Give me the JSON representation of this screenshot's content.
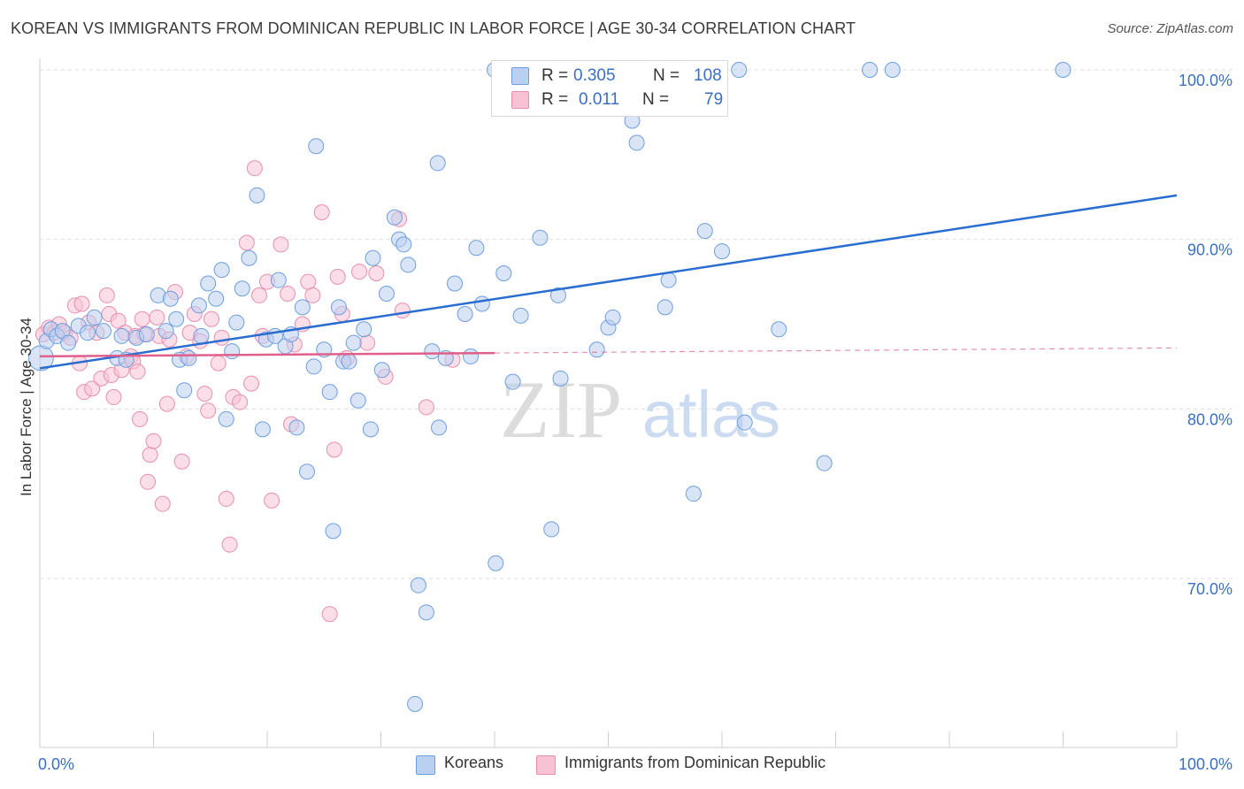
{
  "header": {
    "title": "KOREAN VS IMMIGRANTS FROM DOMINICAN REPUBLIC IN LABOR FORCE | AGE 30-34 CORRELATION CHART",
    "source": "Source: ZipAtlas.com"
  },
  "legend": {
    "r_label": "R =",
    "n_label": "N =",
    "series": [
      {
        "name": "Koreans",
        "r": "0.305",
        "n": "108"
      },
      {
        "name": "Immigrants from Dominican Republic",
        "r": "0.011",
        "n": "79"
      }
    ]
  },
  "watermark": {
    "zip": "ZIP",
    "atlas": "atlas"
  },
  "colors": {
    "koreans_fill": "#b9d0f1",
    "koreans_stroke": "#6d9ee0",
    "koreans_line": "#2a6dd0",
    "dominican_fill": "#f7c3d4",
    "dominican_stroke": "#e88fae",
    "dominican_line": "#e0608c",
    "axis_text": "#3a6fc6",
    "grid": "#dedede"
  },
  "chart_data": {
    "type": "scatter",
    "title": "KOREAN VS IMMIGRANTS FROM DOMINICAN REPUBLIC IN LABOR FORCE | AGE 30-34 CORRELATION CHART",
    "xlabel": "",
    "ylabel": "In Labor Force | Age 30-34",
    "xlim": [
      0,
      100
    ],
    "ylim": [
      60,
      102
    ],
    "x_tick_labels": [
      "0.0%",
      "100.0%"
    ],
    "y_ticks": [
      70,
      80,
      90,
      100
    ],
    "y_tick_labels": [
      "70.0%",
      "80.0%",
      "90.0%",
      "100.0%"
    ],
    "grid": true,
    "legend_position": "bottom",
    "series": [
      {
        "name": "Koreans",
        "r": 0.305,
        "n": 108,
        "trend": {
          "x": [
            0,
            100
          ],
          "y": [
            82.4,
            92.6
          ],
          "dashed_from": null
        },
        "points": [
          [
            0.1,
            83.0
          ],
          [
            0.6,
            84.0
          ],
          [
            1.0,
            84.7
          ],
          [
            1.5,
            84.3
          ],
          [
            2.0,
            84.6
          ],
          [
            2.5,
            83.9
          ],
          [
            3.4,
            84.9
          ],
          [
            4.2,
            84.5
          ],
          [
            4.8,
            85.4
          ],
          [
            5.6,
            84.6
          ],
          [
            6.8,
            83.0
          ],
          [
            7.2,
            84.3
          ],
          [
            7.6,
            82.9
          ],
          [
            8.5,
            84.2
          ],
          [
            9.4,
            84.4
          ],
          [
            10.4,
            86.7
          ],
          [
            11.1,
            84.6
          ],
          [
            11.5,
            86.5
          ],
          [
            12.0,
            85.3
          ],
          [
            12.3,
            82.9
          ],
          [
            12.7,
            81.1
          ],
          [
            13.1,
            83.0
          ],
          [
            14.0,
            86.1
          ],
          [
            14.2,
            84.3
          ],
          [
            14.8,
            87.4
          ],
          [
            15.5,
            86.5
          ],
          [
            16.0,
            88.2
          ],
          [
            16.4,
            79.4
          ],
          [
            16.9,
            83.4
          ],
          [
            17.3,
            85.1
          ],
          [
            17.8,
            87.1
          ],
          [
            18.4,
            88.9
          ],
          [
            19.1,
            92.6
          ],
          [
            19.6,
            78.8
          ],
          [
            19.9,
            84.1
          ],
          [
            20.7,
            84.3
          ],
          [
            21.0,
            87.6
          ],
          [
            21.6,
            83.7
          ],
          [
            22.1,
            84.4
          ],
          [
            22.6,
            78.9
          ],
          [
            23.1,
            86.0
          ],
          [
            23.5,
            76.3
          ],
          [
            24.1,
            82.5
          ],
          [
            24.3,
            95.5
          ],
          [
            25.0,
            83.5
          ],
          [
            25.5,
            81.0
          ],
          [
            25.8,
            72.8
          ],
          [
            26.3,
            86.0
          ],
          [
            26.7,
            82.8
          ],
          [
            27.2,
            82.8
          ],
          [
            27.6,
            83.9
          ],
          [
            28.0,
            80.5
          ],
          [
            28.5,
            84.7
          ],
          [
            29.1,
            78.8
          ],
          [
            29.3,
            88.9
          ],
          [
            30.1,
            82.3
          ],
          [
            30.5,
            86.8
          ],
          [
            31.2,
            91.3
          ],
          [
            31.6,
            90.0
          ],
          [
            32.0,
            89.7
          ],
          [
            32.4,
            88.5
          ],
          [
            33.0,
            62.6
          ],
          [
            33.3,
            69.6
          ],
          [
            34.0,
            68.0
          ],
          [
            34.5,
            83.4
          ],
          [
            35.0,
            94.5
          ],
          [
            35.1,
            78.9
          ],
          [
            35.7,
            83.0
          ],
          [
            36.5,
            87.4
          ],
          [
            37.4,
            85.6
          ],
          [
            37.9,
            83.1
          ],
          [
            38.4,
            89.5
          ],
          [
            38.9,
            86.2
          ],
          [
            40.1,
            70.9
          ],
          [
            40.8,
            88.0
          ],
          [
            41.6,
            81.6
          ],
          [
            42.3,
            85.5
          ],
          [
            44.0,
            90.1
          ],
          [
            45.0,
            72.9
          ],
          [
            45.6,
            86.7
          ],
          [
            45.8,
            81.8
          ],
          [
            49.0,
            83.5
          ],
          [
            50.0,
            84.8
          ],
          [
            50.4,
            85.4
          ],
          [
            51.0,
            98.1
          ],
          [
            52.1,
            97.0
          ],
          [
            52.5,
            95.7
          ],
          [
            53.5,
            100.0
          ],
          [
            55.0,
            86.0
          ],
          [
            55.3,
            87.6
          ],
          [
            57.5,
            75.0
          ],
          [
            58.5,
            90.5
          ],
          [
            60.0,
            89.3
          ],
          [
            61.5,
            100.0
          ],
          [
            62.0,
            79.2
          ],
          [
            65.0,
            84.7
          ],
          [
            69.0,
            76.8
          ],
          [
            73.0,
            100.0
          ],
          [
            75.0,
            100.0
          ],
          [
            90.0,
            100.0
          ],
          [
            40.0,
            100.0
          ]
        ]
      },
      {
        "name": "Immigrants from Dominican Republic",
        "r": 0.011,
        "n": 79,
        "trend": {
          "x": [
            0,
            100
          ],
          "y": [
            83.1,
            83.6
          ],
          "dashed_from": 40
        },
        "points": [
          [
            0.3,
            84.4
          ],
          [
            0.8,
            84.8
          ],
          [
            1.3,
            84.5
          ],
          [
            1.7,
            85.0
          ],
          [
            2.2,
            84.5
          ],
          [
            2.7,
            84.2
          ],
          [
            3.1,
            86.1
          ],
          [
            3.5,
            82.7
          ],
          [
            3.7,
            86.2
          ],
          [
            3.9,
            81.0
          ],
          [
            4.3,
            85.1
          ],
          [
            4.6,
            81.2
          ],
          [
            5.0,
            84.5
          ],
          [
            5.4,
            81.8
          ],
          [
            5.9,
            86.7
          ],
          [
            6.1,
            85.6
          ],
          [
            6.3,
            82.0
          ],
          [
            6.5,
            80.7
          ],
          [
            6.9,
            85.2
          ],
          [
            7.2,
            82.3
          ],
          [
            7.5,
            84.5
          ],
          [
            8.0,
            83.1
          ],
          [
            8.2,
            82.8
          ],
          [
            8.4,
            84.3
          ],
          [
            8.6,
            82.2
          ],
          [
            8.8,
            79.4
          ],
          [
            9.0,
            85.3
          ],
          [
            9.2,
            84.4
          ],
          [
            9.5,
            75.7
          ],
          [
            9.7,
            77.3
          ],
          [
            10.0,
            78.1
          ],
          [
            10.3,
            85.4
          ],
          [
            10.5,
            84.3
          ],
          [
            10.8,
            74.4
          ],
          [
            11.2,
            80.3
          ],
          [
            11.4,
            84.1
          ],
          [
            11.9,
            86.9
          ],
          [
            12.5,
            76.9
          ],
          [
            12.9,
            83.1
          ],
          [
            13.2,
            84.5
          ],
          [
            13.6,
            85.6
          ],
          [
            14.1,
            84.0
          ],
          [
            14.5,
            80.9
          ],
          [
            14.8,
            79.9
          ],
          [
            15.1,
            85.3
          ],
          [
            15.7,
            82.7
          ],
          [
            16.0,
            84.2
          ],
          [
            16.4,
            74.7
          ],
          [
            16.7,
            72.0
          ],
          [
            17.0,
            80.7
          ],
          [
            17.6,
            80.4
          ],
          [
            18.2,
            89.8
          ],
          [
            18.6,
            81.5
          ],
          [
            18.9,
            94.2
          ],
          [
            19.3,
            86.7
          ],
          [
            19.6,
            84.3
          ],
          [
            20.0,
            87.5
          ],
          [
            20.4,
            74.6
          ],
          [
            21.2,
            89.7
          ],
          [
            21.8,
            86.8
          ],
          [
            22.1,
            79.1
          ],
          [
            22.4,
            83.8
          ],
          [
            23.1,
            85.0
          ],
          [
            23.6,
            87.5
          ],
          [
            24.0,
            86.7
          ],
          [
            24.8,
            91.6
          ],
          [
            25.5,
            67.9
          ],
          [
            25.9,
            77.6
          ],
          [
            26.2,
            87.8
          ],
          [
            26.6,
            85.6
          ],
          [
            27.0,
            83.0
          ],
          [
            28.1,
            88.1
          ],
          [
            28.8,
            83.9
          ],
          [
            29.6,
            88.0
          ],
          [
            30.4,
            81.9
          ],
          [
            31.6,
            91.2
          ],
          [
            31.9,
            85.8
          ],
          [
            34.0,
            80.1
          ],
          [
            36.3,
            82.9
          ]
        ]
      }
    ]
  }
}
